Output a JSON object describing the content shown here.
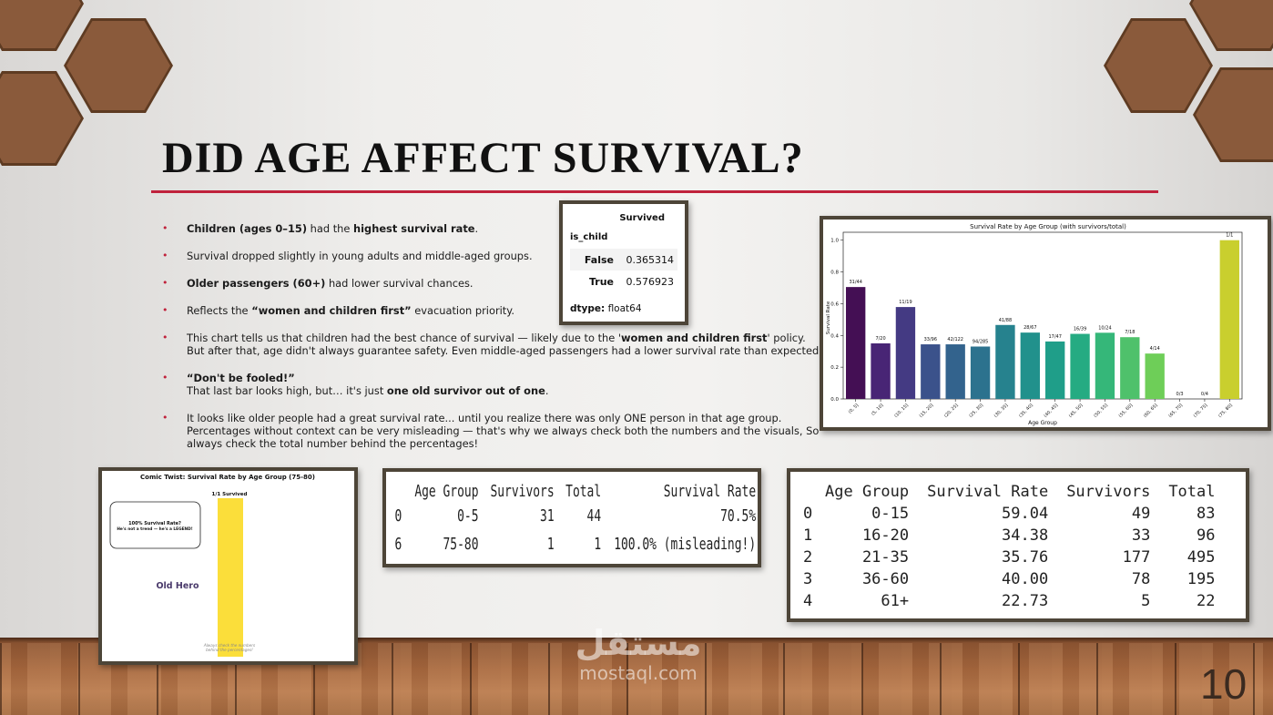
{
  "slide": {
    "title": "DID AGE AFFECT SURVIVAL?",
    "page_number": "10",
    "accent_color": "#c0223c"
  },
  "bullets": [
    {
      "pre": "",
      "b1": "Children (ages 0–15)",
      "mid": " had the ",
      "b2": "highest survival rate",
      "post": "."
    },
    {
      "text": "Survival dropped slightly in young adults and middle-aged groups."
    },
    {
      "pre": "",
      "b1": "Older passengers (60+)",
      "mid": " had lower survival chances.",
      "b2": "",
      "post": ""
    },
    {
      "pre": "Reflects the ",
      "b1": "“women and children first”",
      "mid": " evacuation priority.",
      "b2": "",
      "post": ""
    },
    {
      "pre": "This chart tells us that children had the best chance of survival — likely due to the '",
      "b1": "women and children first",
      "mid": "' policy. But after that, age didn't always guarantee safety. Even middle-aged passengers had a lower survival rate than expected.",
      "b2": "",
      "post": ""
    },
    {
      "b1": "“Don't be fooled!”",
      "line2_pre": "That last bar looks high, but… it's just ",
      "line2_b": "one old survivor out of one",
      "line2_post": "."
    },
    {
      "text": "It looks like older people had a great survival rate... until you realize there was only ONE person in that age group. Percentages without context can be very misleading — that's why we always check both the numbers and the visuals, So always check the total number behind the percentages!"
    }
  ],
  "is_child_table": {
    "column": "Survived",
    "index_name": "is_child",
    "rows": [
      {
        "label": "False",
        "value": "0.365314"
      },
      {
        "label": "True",
        "value": "0.576923"
      }
    ],
    "dtype_label": "dtype:",
    "dtype_value": "float64"
  },
  "chart_data": [
    {
      "type": "bar",
      "title": "Survival Rate by Age Group (with survivors/total)",
      "xlabel": "Age Group",
      "ylabel": "Survival Rate",
      "ylim": [
        0,
        1.05
      ],
      "yticks": [
        "0.0",
        "0.2",
        "0.4",
        "0.6",
        "0.8",
        "1.0"
      ],
      "categories": [
        "(0, 5]",
        "(5, 10]",
        "(10, 15]",
        "(15, 20]",
        "(20, 25]",
        "(25, 30]",
        "(30, 35]",
        "(35, 40]",
        "(40, 45]",
        "(45, 50]",
        "(50, 55]",
        "(55, 60]",
        "(60, 65]",
        "(65, 70]",
        "(70, 75]",
        "(75, 80]"
      ],
      "values": [
        0.705,
        0.35,
        0.579,
        0.344,
        0.344,
        0.33,
        0.466,
        0.418,
        0.362,
        0.41,
        0.417,
        0.389,
        0.286,
        0.0,
        0.0,
        1.0
      ],
      "bar_labels": [
        "31/44",
        "7/20",
        "11/19",
        "33/96",
        "42/122",
        "94/285",
        "41/88",
        "28/67",
        "17/47",
        "16/39",
        "10/24",
        "7/18",
        "4/14",
        "0/3",
        "0/4",
        "1/1"
      ],
      "colors": [
        "#440f54",
        "#482575",
        "#443a83",
        "#3b528b",
        "#33638d",
        "#2c728e",
        "#26828e",
        "#21918c",
        "#1f9e89",
        "#25ab82",
        "#35b779",
        "#4fc16b",
        "#6ece58",
        "#90d743",
        "#b5de2b",
        "#c9cf2e"
      ],
      "grid": false
    },
    {
      "type": "bar",
      "title": "Comic Twist: Survival Rate by Age Group (75-80)",
      "categories": [
        "75-80"
      ],
      "values": [
        1.0
      ],
      "bar_label": "1/1 Survived",
      "bubble_line1": "100% Survival Rate?",
      "bubble_line2": "He's not a trend — he's a LEGEND!",
      "hero_label": "Old Hero",
      "footnote_line1": "Always check the numbers",
      "footnote_line2": "behind the percentages!",
      "color": "#fbde3a"
    }
  ],
  "extreme_table": {
    "headers": [
      "Age Group",
      "Survivors",
      "Total",
      "Survival Rate"
    ],
    "rows": [
      {
        "idx": "0",
        "age": "0-5",
        "survivors": "31",
        "total": "44",
        "rate": "70.5%"
      },
      {
        "idx": "6",
        "age": "75-80",
        "survivors": "1",
        "total": "1",
        "rate": "100.0% (misleading!)"
      }
    ]
  },
  "group_table": {
    "headers": [
      "Age Group",
      "Survival Rate",
      "Survivors",
      "Total"
    ],
    "rows": [
      {
        "idx": "0",
        "age": "0-15",
        "rate": "59.04",
        "survivors": "49",
        "total": "83"
      },
      {
        "idx": "1",
        "age": "16-20",
        "rate": "34.38",
        "survivors": "33",
        "total": "96"
      },
      {
        "idx": "2",
        "age": "21-35",
        "rate": "35.76",
        "survivors": "177",
        "total": "495"
      },
      {
        "idx": "3",
        "age": "36-60",
        "rate": "40.00",
        "survivors": "78",
        "total": "195"
      },
      {
        "idx": "4",
        "age": "61+",
        "rate": "22.73",
        "survivors": "5",
        "total": "22"
      }
    ]
  },
  "watermark": {
    "logo": "مستقل",
    "url": "mostaql.com"
  }
}
